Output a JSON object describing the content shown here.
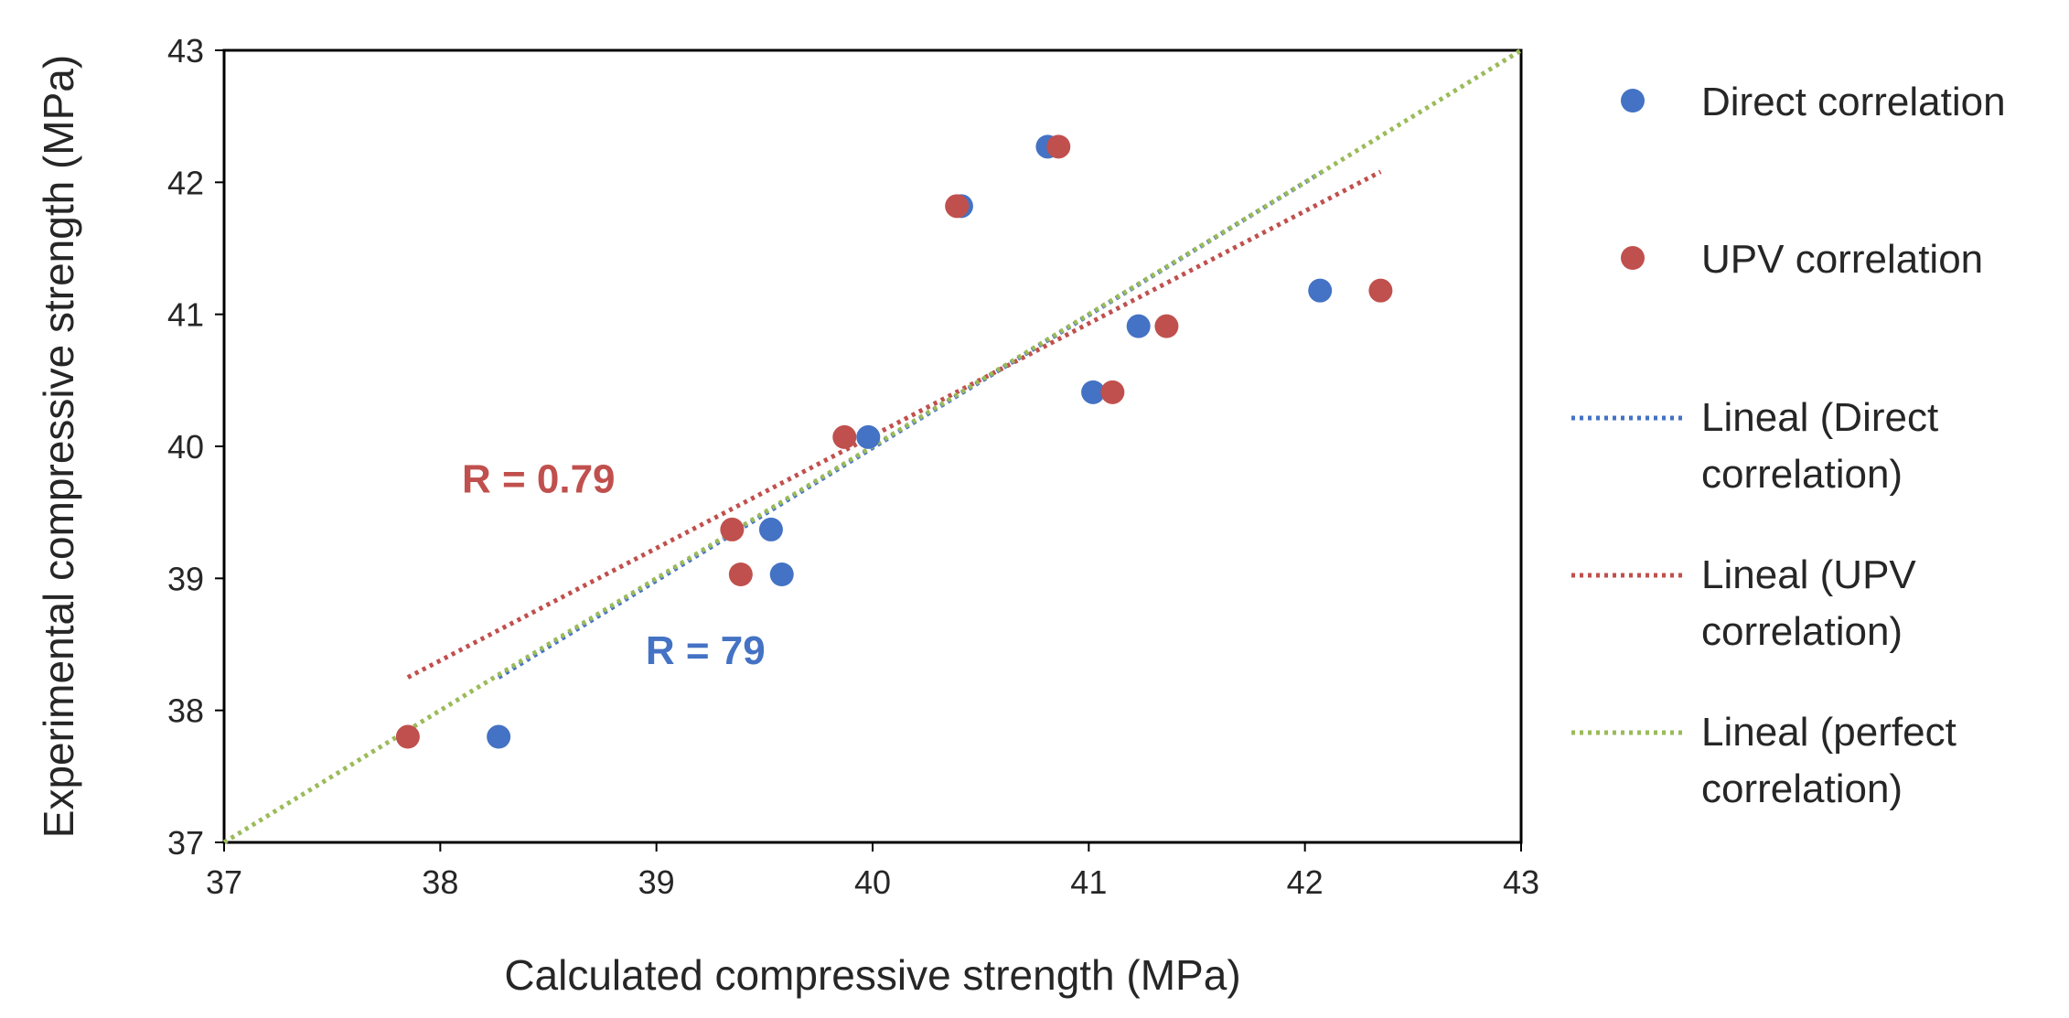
{
  "chart_data": {
    "type": "scatter",
    "title": "",
    "xlabel": "Calculated compressive strength (MPa)",
    "ylabel": "Experimental compressive strength (MPa)",
    "xlim": [
      37,
      43
    ],
    "ylim": [
      37,
      43
    ],
    "xticks": [
      "37",
      "38",
      "39",
      "40",
      "41",
      "42",
      "43"
    ],
    "yticks": [
      "37",
      "38",
      "39",
      "40",
      "41",
      "42",
      "43"
    ],
    "grid": false,
    "legend_position": "right",
    "series": [
      {
        "name": "Direct correlation",
        "kind": "points",
        "color": "#4472C4",
        "x": [
          38.27,
          39.53,
          39.58,
          39.98,
          40.41,
          40.81,
          41.02,
          41.23,
          42.07
        ],
        "y": [
          37.8,
          39.37,
          39.03,
          40.07,
          41.82,
          42.27,
          40.41,
          40.91,
          41.18
        ]
      },
      {
        "name": "UPV correlation",
        "kind": "points",
        "color": "#C0504D",
        "x": [
          37.85,
          39.35,
          39.39,
          39.87,
          40.39,
          40.86,
          41.11,
          41.36,
          42.35
        ],
        "y": [
          37.8,
          39.37,
          39.03,
          40.07,
          41.82,
          42.27,
          40.41,
          40.91,
          41.18
        ]
      },
      {
        "name": "Lineal (Direct correlation)",
        "label_lines": [
          "Lineal (Direct",
          "correlation)"
        ],
        "kind": "trendline",
        "color": "#4472C4",
        "x": [
          38.27,
          42.07
        ],
        "y": [
          38.25,
          42.07
        ]
      },
      {
        "name": "Lineal (UPV correlation)",
        "label_lines": [
          "Lineal (UPV",
          "correlation)"
        ],
        "kind": "trendline",
        "color": "#C0504D",
        "x": [
          37.85,
          42.35
        ],
        "y": [
          38.25,
          42.08
        ]
      },
      {
        "name": "Lineal (perfect correlation)",
        "label_lines": [
          "Lineal (perfect",
          "correlation)"
        ],
        "kind": "trendline",
        "color": "#9BBB59",
        "x": [
          37,
          43
        ],
        "y": [
          37,
          43
        ]
      }
    ],
    "annotations": [
      {
        "text": "R = 0.79",
        "color": "#C0504D",
        "x": 38.1,
        "y": 39.65
      },
      {
        "text": "R = 79",
        "color": "#4472C4",
        "x": 38.95,
        "y": 38.35
      }
    ]
  }
}
